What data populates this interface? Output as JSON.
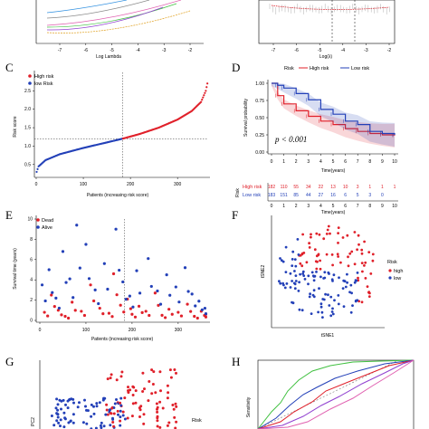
{
  "panels": {
    "A": {
      "xlabel": "Log Lambda",
      "ticks": [
        "-7",
        "-6",
        "-5",
        "-4",
        "-3",
        "-2"
      ]
    },
    "B": {
      "xlabel": "Log(λ)",
      "ticks": [
        "-7",
        "-6",
        "-5",
        "-4",
        "-3",
        "-2"
      ]
    },
    "C": {
      "label": "C",
      "xlabel": "Patients (increasing risk score)",
      "ylabel": "Risk score",
      "legend": [
        "High risk",
        "low Risk"
      ]
    },
    "D": {
      "label": "D",
      "legend_title": "Risk",
      "legend": [
        "High risk",
        "Low risk"
      ],
      "ylabel": "Survival probability",
      "xlabel": "Time(years)",
      "pvalue": "p < 0.001",
      "table": {
        "title": "Risk",
        "xlabel": "Time(years)",
        "rows": [
          {
            "name": "High risk",
            "values": [
              "182",
              "110",
              "55",
              "34",
              "22",
              "13",
              "10",
              "3",
              "1",
              "1",
              "1"
            ]
          },
          {
            "name": "Low risk",
            "values": [
              "183",
              "151",
              "85",
              "44",
              "27",
              "16",
              "6",
              "5",
              "3",
              "0",
              ""
            ]
          }
        ]
      }
    },
    "E": {
      "label": "E",
      "xlabel": "Patients (increasing risk score)",
      "ylabel": "Survival time (years)",
      "legend": [
        "Dead",
        "Alive"
      ]
    },
    "F": {
      "label": "F",
      "xlabel": "tSNE1",
      "ylabel": "tSNE2",
      "legend_title": "Risk",
      "legend": [
        "high",
        "low"
      ]
    },
    "G": {
      "label": "G",
      "legend_title": "Risk",
      "ylabel": "PC2"
    },
    "H": {
      "label": "H",
      "ylabel": "Sensitivity"
    }
  },
  "colors": {
    "high": "#e0202a",
    "low": "#2340b8",
    "green": "#40c040",
    "purple": "#9040d0",
    "pink": "#e060b0"
  },
  "chart_data": [
    {
      "type": "line",
      "panel": "C",
      "xlabel": "Patients (increasing risk score)",
      "ylabel": "Risk score",
      "xlim": [
        0,
        365
      ],
      "ylim": [
        0.2,
        3.0
      ],
      "xticks": [
        0,
        100,
        200,
        300
      ],
      "yticks": [
        0.5,
        1.0,
        1.5,
        2.0,
        2.5
      ],
      "cutoff_x": 183,
      "cutoff_y": 1.2,
      "series": [
        {
          "name": "High risk",
          "x": [
            183,
            220,
            260,
            300,
            330,
            350,
            360,
            365
          ],
          "values": [
            1.2,
            1.33,
            1.5,
            1.72,
            1.95,
            2.2,
            2.5,
            2.8
          ]
        },
        {
          "name": "low Risk",
          "x": [
            1,
            5,
            20,
            50,
            100,
            150,
            183
          ],
          "values": [
            0.3,
            0.45,
            0.62,
            0.78,
            0.95,
            1.1,
            1.2
          ]
        }
      ]
    },
    {
      "type": "line",
      "panel": "D",
      "xlabel": "Time(years)",
      "ylabel": "Survival probability",
      "xlim": [
        0,
        10
      ],
      "ylim": [
        0,
        1
      ],
      "xticks": [
        0,
        1,
        2,
        3,
        4,
        5,
        6,
        7,
        8,
        9,
        10
      ],
      "yticks": [
        0.0,
        0.25,
        0.5,
        0.75,
        1.0
      ],
      "series": [
        {
          "name": "High risk",
          "x": [
            0,
            0.5,
            1,
            2,
            3,
            4,
            5,
            6,
            7,
            8,
            9,
            10
          ],
          "values": [
            1.0,
            0.82,
            0.7,
            0.6,
            0.52,
            0.45,
            0.4,
            0.34,
            0.3,
            0.27,
            0.25,
            0.24
          ]
        },
        {
          "name": "Low risk",
          "x": [
            0,
            0.5,
            1,
            2,
            3,
            4,
            5,
            6,
            7,
            8,
            9,
            10
          ],
          "values": [
            1.0,
            0.97,
            0.93,
            0.85,
            0.76,
            0.62,
            0.55,
            0.45,
            0.4,
            0.3,
            0.27,
            0.25
          ]
        }
      ]
    },
    {
      "type": "scatter",
      "panel": "E",
      "xlabel": "Patients (increasing risk score)",
      "ylabel": "Survival time (years)",
      "xlim": [
        0,
        365
      ],
      "ylim": [
        0,
        10
      ],
      "xticks": [
        0,
        100,
        200,
        300
      ],
      "yticks": [
        0,
        2,
        4,
        6,
        8,
        10
      ],
      "cutoff_x": 183,
      "series": [
        {
          "name": "Dead",
          "x": [
            10,
            25,
            40,
            55,
            70,
            90,
            110,
            130,
            150,
            160,
            175,
            190,
            200,
            215,
            230,
            250,
            265,
            280,
            300,
            320,
            335,
            350,
            360
          ],
          "values": [
            0.8,
            2.5,
            1.0,
            0.4,
            1.8,
            0.9,
            3.5,
            1.2,
            0.7,
            4.6,
            1.5,
            2.1,
            0.6,
            1.4,
            0.9,
            2.7,
            0.5,
            1.1,
            0.8,
            1.6,
            0.4,
            0.9,
            0.6
          ]
        },
        {
          "name": "Alive",
          "x": [
            5,
            20,
            35,
            50,
            65,
            80,
            100,
            120,
            140,
            165,
            180,
            195,
            210,
            235,
            255,
            275,
            295,
            315,
            330,
            345,
            358
          ],
          "values": [
            3.5,
            5.0,
            2.2,
            6.8,
            4.1,
            9.4,
            7.5,
            3.0,
            5.6,
            9.0,
            3.8,
            2.4,
            4.9,
            6.1,
            2.9,
            4.5,
            3.3,
            5.2,
            2.6,
            1.9,
            1.2
          ]
        }
      ]
    }
  ]
}
